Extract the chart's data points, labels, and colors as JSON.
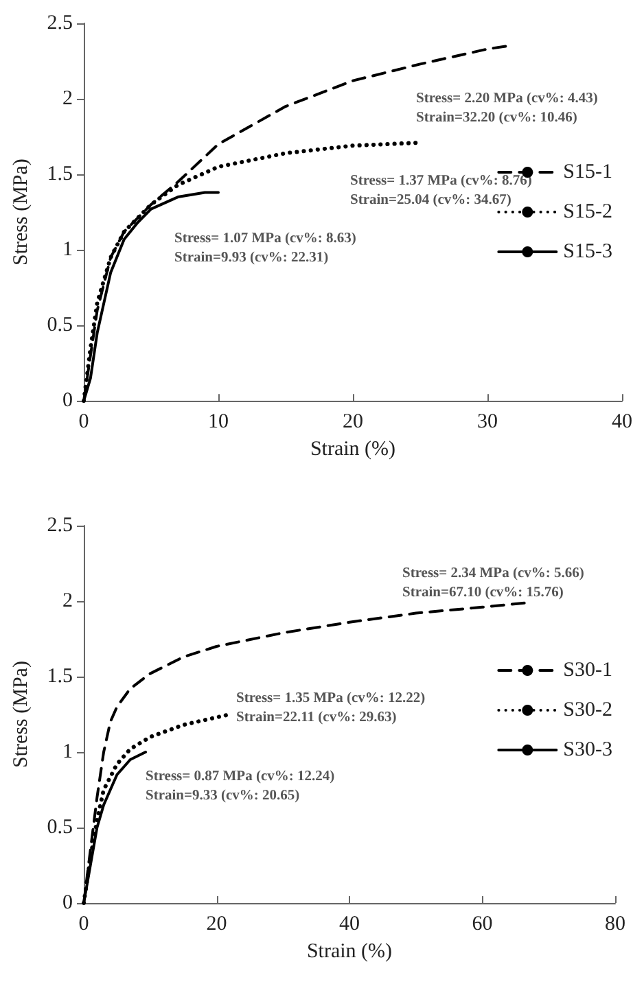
{
  "chart_data": [
    {
      "type": "line",
      "xlabel": "Strain (%)",
      "ylabel": "Stress (MPa)",
      "xlim": [
        0,
        40
      ],
      "xticks": [
        0,
        10,
        20,
        30,
        40
      ],
      "ylim": [
        0,
        2.5
      ],
      "yticks": [
        0,
        0.5,
        1,
        1.5,
        2,
        2.5
      ],
      "grid": false,
      "legend": "right",
      "marker": "none",
      "series": [
        {
          "name": "S15-1",
          "color": "#000000",
          "line_style": "dashed",
          "x": [
            0,
            0.5,
            1,
            2,
            3,
            5,
            7,
            10,
            15,
            20,
            25,
            30,
            31.5
          ],
          "values": [
            0,
            0.3,
            0.6,
            0.95,
            1.12,
            1.3,
            1.45,
            1.7,
            1.95,
            2.12,
            2.23,
            2.33,
            2.35
          ]
        },
        {
          "name": "S15-2",
          "color": "#000000",
          "line_style": "dotted",
          "x": [
            0,
            0.5,
            1,
            2,
            3,
            5,
            7,
            10,
            15,
            20,
            25
          ],
          "values": [
            0,
            0.35,
            0.65,
            0.95,
            1.12,
            1.3,
            1.43,
            1.55,
            1.64,
            1.69,
            1.71
          ]
        },
        {
          "name": "S15-3",
          "color": "#000000",
          "line_style": "solid",
          "x": [
            0,
            0.5,
            1,
            2,
            3,
            4,
            5,
            7,
            9,
            10
          ],
          "values": [
            0,
            0.15,
            0.45,
            0.85,
            1.07,
            1.18,
            1.27,
            1.35,
            1.38,
            1.38
          ]
        }
      ],
      "annotations": [
        "Stress= 2.20 MPa (cv%: 4.43)\nStrain=32.20 (cv%: 10.46)",
        "Stress= 1.37 MPa (cv%: 8.76)\nStrain=25.04 (cv%: 34.67)",
        "Stress= 1.07 MPa (cv%: 8.63)\nStrain=9.93 (cv%: 22.31)"
      ]
    },
    {
      "type": "line",
      "xlabel": "Strain (%)",
      "ylabel": "Stress (MPa)",
      "xlim": [
        0,
        80
      ],
      "xticks": [
        0,
        20,
        40,
        60,
        80
      ],
      "ylim": [
        0,
        2.5
      ],
      "yticks": [
        0,
        0.5,
        1,
        1.5,
        2,
        2.5
      ],
      "grid": false,
      "legend": "right",
      "marker": "none",
      "series": [
        {
          "name": "S30-1",
          "color": "#000000",
          "line_style": "dashed",
          "x": [
            0,
            1,
            2,
            3,
            4,
            5,
            7,
            10,
            15,
            20,
            30,
            40,
            50,
            60,
            67
          ],
          "values": [
            0,
            0.35,
            0.7,
            1.0,
            1.2,
            1.3,
            1.42,
            1.52,
            1.63,
            1.7,
            1.79,
            1.86,
            1.92,
            1.96,
            1.99
          ]
        },
        {
          "name": "S30-2",
          "color": "#000000",
          "line_style": "dotted",
          "x": [
            0,
            1,
            2,
            3,
            5,
            7,
            10,
            15,
            20,
            22
          ],
          "values": [
            0,
            0.3,
            0.55,
            0.75,
            0.92,
            1.02,
            1.1,
            1.18,
            1.23,
            1.25
          ]
        },
        {
          "name": "S30-3",
          "color": "#000000",
          "line_style": "solid",
          "x": [
            0,
            1,
            2,
            3,
            5,
            7,
            9.3
          ],
          "values": [
            0,
            0.25,
            0.5,
            0.65,
            0.85,
            0.95,
            1.0
          ]
        }
      ],
      "annotations": [
        "Stress= 2.34 MPa (cv%: 5.66)\nStrain=67.10 (cv%: 15.76)",
        "Stress= 1.35 MPa (cv%: 12.22)\nStrain=22.11 (cv%: 29.63)",
        "Stress= 0.87 MPa (cv%: 12.24)\nStrain=9.33 (cv%: 20.65)"
      ]
    }
  ]
}
